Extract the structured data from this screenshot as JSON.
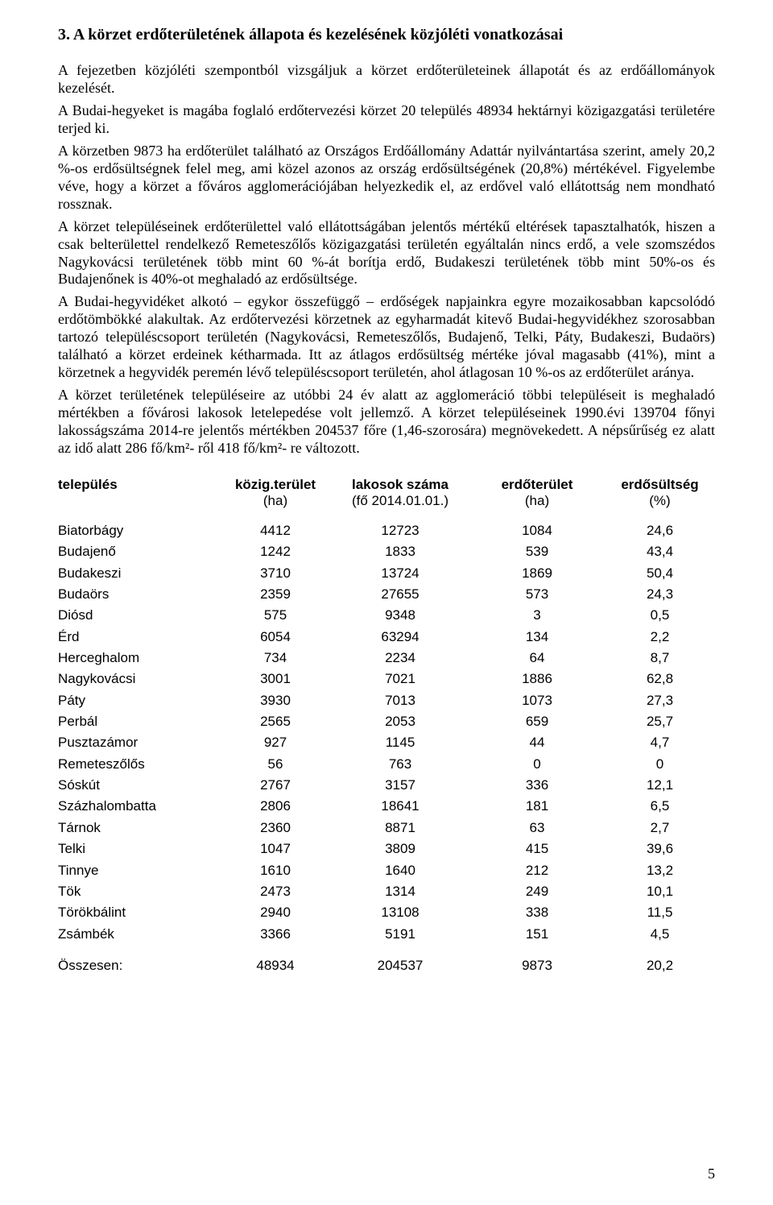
{
  "heading": "3. A körzet erdőterületének állapota és kezelésének közjóléti vonatkozásai",
  "paragraphs": {
    "p1": "A fejezetben közjóléti szempontból vizsgáljuk a körzet erdőterületeinek állapotát és az erdőállományok kezelését.",
    "p2": "A Budai-hegyeket is magába foglaló erdőtervezési körzet 20 település 48934 hektárnyi közigazgatási területére terjed ki.",
    "p3": "A körzetben 9873 ha erdőterület található az Országos Erdőállomány Adattár nyilvántartása szerint, amely 20,2 %-os erdősültségnek felel meg, ami közel azonos az ország erdősültségének (20,8%) mértékével. Figyelembe véve, hogy a körzet a főváros agglomerációjában helyezkedik el, az erdővel való ellátottság nem mondható rossznak.",
    "p4": "A körzet településeinek erdőterülettel való ellátottságában jelentős mértékű eltérések tapasztalhatók, hiszen a csak belterülettel rendelkező Remeteszőlős közigazgatási területén egyáltalán nincs erdő, a vele szomszédos Nagykovácsi területének több mint 60 %-át borítja erdő, Budakeszi területének több mint 50%-os és Budajenőnek is 40%-ot meghaladó az erdősültsége.",
    "p5": "A Budai-hegyvidéket alkotó – egykor összefüggő – erdőségek napjainkra egyre mozaikosabban kapcsolódó erdőtömbökké alakultak. Az erdőtervezési körzetnek az egyharmadát kitevő Budai-hegyvidékhez szorosabban tartozó településcsoport területén (Nagykovácsi, Remeteszőlős, Budajenő, Telki, Páty, Budakeszi, Budaörs) található a körzet erdeinek kétharmada. Itt az átlagos erdősültség mértéke jóval magasabb (41%), mint a körzetnek a hegyvidék peremén lévő településcsoport területén, ahol átlagosan 10 %-os az erdőterület aránya.",
    "p6": "A körzet területének településeire az utóbbi 24 év alatt az agglomeráció többi településeit is meghaladó mértékben a fővárosi lakosok letelepedése volt jellemző. A körzet településeinek 1990.évi 139704 főnyi lakosságszáma 2014-re jelentős mértékben 204537 főre (1,46-szorosára) megnövekedett. A népsűrűség ez alatt az idő alatt 286 fő/km²- ről  418 fő/km²- re változott."
  },
  "table": {
    "headers": {
      "name": "település",
      "area": "közig.terület",
      "pop": "lakosok száma",
      "forest": "erdőterület",
      "pct": "erdősültség"
    },
    "subheaders": {
      "area": "(ha)",
      "pop": "(fő 2014.01.01.)",
      "forest": "(ha)",
      "pct": "(%)"
    },
    "rows": [
      {
        "name": "Biatorbágy",
        "area": "4412",
        "pop": "12723",
        "forest": "1084",
        "pct": "24,6"
      },
      {
        "name": "Budajenő",
        "area": "1242",
        "pop": "1833",
        "forest": "539",
        "pct": "43,4"
      },
      {
        "name": "Budakeszi",
        "area": "3710",
        "pop": "13724",
        "forest": "1869",
        "pct": "50,4"
      },
      {
        "name": "Budaörs",
        "area": "2359",
        "pop": "27655",
        "forest": "573",
        "pct": "24,3"
      },
      {
        "name": "Diósd",
        "area": "575",
        "pop": "9348",
        "forest": "3",
        "pct": "0,5"
      },
      {
        "name": "Érd",
        "area": "6054",
        "pop": "63294",
        "forest": "134",
        "pct": "2,2"
      },
      {
        "name": "Herceghalom",
        "area": "734",
        "pop": "2234",
        "forest": "64",
        "pct": "8,7"
      },
      {
        "name": "Nagykovácsi",
        "area": "3001",
        "pop": "7021",
        "forest": "1886",
        "pct": "62,8"
      },
      {
        "name": "Páty",
        "area": "3930",
        "pop": "7013",
        "forest": "1073",
        "pct": "27,3"
      },
      {
        "name": "Perbál",
        "area": "2565",
        "pop": "2053",
        "forest": "659",
        "pct": "25,7"
      },
      {
        "name": "Pusztazámor",
        "area": "927",
        "pop": "1145",
        "forest": "44",
        "pct": "4,7"
      },
      {
        "name": "Remeteszőlős",
        "area": "56",
        "pop": "763",
        "forest": "0",
        "pct": "0"
      },
      {
        "name": "Sóskút",
        "area": "2767",
        "pop": "3157",
        "forest": "336",
        "pct": "12,1"
      },
      {
        "name": "Százhalombatta",
        "area": "2806",
        "pop": "18641",
        "forest": "181",
        "pct": "6,5"
      },
      {
        "name": "Tárnok",
        "area": "2360",
        "pop": "8871",
        "forest": "63",
        "pct": "2,7"
      },
      {
        "name": "Telki",
        "area": "1047",
        "pop": "3809",
        "forest": "415",
        "pct": "39,6"
      },
      {
        "name": "Tinnye",
        "area": "1610",
        "pop": "1640",
        "forest": "212",
        "pct": "13,2"
      },
      {
        "name": "Tök",
        "area": "2473",
        "pop": "1314",
        "forest": "249",
        "pct": "10,1"
      },
      {
        "name": "Törökbálint",
        "area": "2940",
        "pop": "13108",
        "forest": "338",
        "pct": "11,5"
      },
      {
        "name": "Zsámbék",
        "area": "3366",
        "pop": "5191",
        "forest": "151",
        "pct": "4,5"
      }
    ],
    "footer": {
      "name": "Összesen:",
      "area": "48934",
      "pop": "204537",
      "forest": "9873",
      "pct": "20,2"
    }
  },
  "page_number": "5"
}
